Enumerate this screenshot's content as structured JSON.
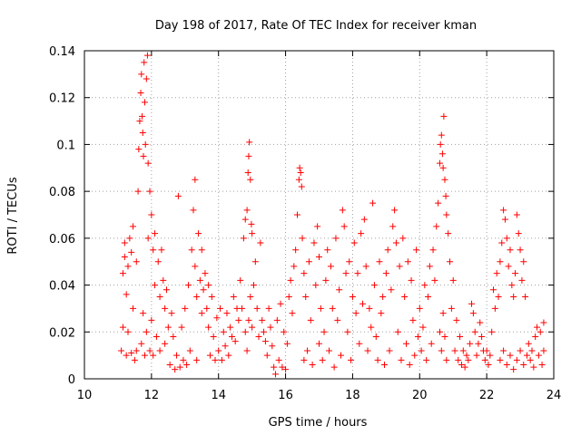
{
  "chart_data": {
    "type": "scatter",
    "title": "Day 198 of 2017, Rate Of TEC Index for receiver kman",
    "xlabel": "GPS time / hours",
    "ylabel": "ROTI / TECUs",
    "xlim": [
      10,
      24
    ],
    "ylim": [
      0,
      0.14
    ],
    "x_ticks": [
      "10",
      "12",
      "14",
      "16",
      "18",
      "20",
      "22",
      "24"
    ],
    "y_ticks": [
      "0",
      "0.02",
      "0.04",
      "0.06",
      "0.08",
      "0.1",
      "0.12",
      "0.14"
    ],
    "grid": true,
    "marker": "plus",
    "color": "#ff0000",
    "series": [
      {
        "points": [
          [
            11.1,
            0.012
          ],
          [
            11.15,
            0.022
          ],
          [
            11.15,
            0.045
          ],
          [
            11.2,
            0.052
          ],
          [
            11.2,
            0.058
          ],
          [
            11.25,
            0.01
          ],
          [
            11.25,
            0.036
          ],
          [
            11.3,
            0.02
          ],
          [
            11.3,
            0.048
          ],
          [
            11.35,
            0.06
          ],
          [
            11.4,
            0.011
          ],
          [
            11.4,
            0.054
          ],
          [
            11.45,
            0.065
          ],
          [
            11.45,
            0.03
          ],
          [
            11.5,
            0.008
          ],
          [
            11.55,
            0.05
          ],
          [
            11.55,
            0.012
          ],
          [
            11.6,
            0.08
          ],
          [
            11.62,
            0.098
          ],
          [
            11.65,
            0.11
          ],
          [
            11.68,
            0.122
          ],
          [
            11.7,
            0.13
          ],
          [
            11.72,
            0.112
          ],
          [
            11.74,
            0.105
          ],
          [
            11.76,
            0.095
          ],
          [
            11.78,
            0.135
          ],
          [
            11.8,
            0.118
          ],
          [
            11.82,
            0.1
          ],
          [
            11.85,
            0.128
          ],
          [
            11.88,
            0.138
          ],
          [
            11.7,
            0.015
          ],
          [
            11.75,
            0.028
          ],
          [
            11.8,
            0.01
          ],
          [
            11.85,
            0.02
          ],
          [
            11.9,
            0.092
          ],
          [
            11.9,
            0.06
          ],
          [
            11.95,
            0.08
          ],
          [
            11.95,
            0.012
          ],
          [
            12.0,
            0.07
          ],
          [
            12.0,
            0.025
          ],
          [
            12.05,
            0.055
          ],
          [
            12.05,
            0.01
          ],
          [
            12.1,
            0.062
          ],
          [
            12.1,
            0.04
          ],
          [
            12.15,
            0.018
          ],
          [
            12.2,
            0.05
          ],
          [
            12.25,
            0.035
          ],
          [
            12.25,
            0.012
          ],
          [
            12.3,
            0.055
          ],
          [
            12.35,
            0.042
          ],
          [
            12.4,
            0.03
          ],
          [
            12.4,
            0.015
          ],
          [
            12.45,
            0.038
          ],
          [
            12.5,
            0.022
          ],
          [
            12.55,
            0.006
          ],
          [
            12.6,
            0.028
          ],
          [
            12.65,
            0.018
          ],
          [
            12.7,
            0.004
          ],
          [
            12.75,
            0.01
          ],
          [
            12.8,
            0.078
          ],
          [
            12.85,
            0.005
          ],
          [
            12.9,
            0.022
          ],
          [
            12.95,
            0.008
          ],
          [
            13.0,
            0.03
          ],
          [
            13.05,
            0.006
          ],
          [
            13.1,
            0.04
          ],
          [
            13.15,
            0.012
          ],
          [
            13.2,
            0.055
          ],
          [
            13.25,
            0.072
          ],
          [
            13.3,
            0.085
          ],
          [
            13.3,
            0.048
          ],
          [
            13.35,
            0.035
          ],
          [
            13.35,
            0.008
          ],
          [
            13.4,
            0.062
          ],
          [
            13.45,
            0.042
          ],
          [
            13.5,
            0.028
          ],
          [
            13.5,
            0.055
          ],
          [
            13.55,
            0.038
          ],
          [
            13.6,
            0.045
          ],
          [
            13.65,
            0.03
          ],
          [
            13.7,
            0.022
          ],
          [
            13.7,
            0.04
          ],
          [
            13.75,
            0.01
          ],
          [
            13.8,
            0.035
          ],
          [
            13.85,
            0.018
          ],
          [
            13.9,
            0.008
          ],
          [
            13.95,
            0.026
          ],
          [
            14.0,
            0.012
          ],
          [
            14.05,
            0.03
          ],
          [
            14.1,
            0.008
          ],
          [
            14.15,
            0.02
          ],
          [
            14.2,
            0.014
          ],
          [
            14.25,
            0.028
          ],
          [
            14.3,
            0.01
          ],
          [
            14.35,
            0.022
          ],
          [
            14.4,
            0.018
          ],
          [
            14.45,
            0.035
          ],
          [
            14.5,
            0.016
          ],
          [
            14.55,
            0.03
          ],
          [
            14.6,
            0.025
          ],
          [
            14.65,
            0.042
          ],
          [
            14.7,
            0.03
          ],
          [
            14.75,
            0.06
          ],
          [
            14.8,
            0.068
          ],
          [
            14.85,
            0.072
          ],
          [
            14.88,
            0.088
          ],
          [
            14.9,
            0.095
          ],
          [
            14.92,
            0.101
          ],
          [
            14.95,
            0.085
          ],
          [
            14.98,
            0.066
          ],
          [
            14.8,
            0.02
          ],
          [
            14.85,
            0.012
          ],
          [
            14.9,
            0.025
          ],
          [
            14.95,
            0.035
          ],
          [
            15.0,
            0.062
          ],
          [
            15.0,
            0.022
          ],
          [
            15.05,
            0.04
          ],
          [
            15.1,
            0.05
          ],
          [
            15.15,
            0.03
          ],
          [
            15.2,
            0.018
          ],
          [
            15.25,
            0.058
          ],
          [
            15.3,
            0.025
          ],
          [
            15.35,
            0.02
          ],
          [
            15.4,
            0.016
          ],
          [
            15.45,
            0.01
          ],
          [
            15.5,
            0.03
          ],
          [
            15.55,
            0.022
          ],
          [
            15.6,
            0.014
          ],
          [
            15.65,
            0.005
          ],
          [
            15.7,
            0.002
          ],
          [
            15.75,
            0.025
          ],
          [
            15.8,
            0.008
          ],
          [
            15.85,
            0.032
          ],
          [
            15.9,
            0.005
          ],
          [
            15.95,
            0.02
          ],
          [
            16.0,
            0.004
          ],
          [
            16.05,
            0.015
          ],
          [
            16.1,
            0.035
          ],
          [
            16.15,
            0.042
          ],
          [
            16.2,
            0.028
          ],
          [
            16.25,
            0.048
          ],
          [
            16.3,
            0.055
          ],
          [
            16.35,
            0.07
          ],
          [
            16.4,
            0.085
          ],
          [
            16.42,
            0.09
          ],
          [
            16.45,
            0.088
          ],
          [
            16.48,
            0.082
          ],
          [
            16.5,
            0.06
          ],
          [
            16.55,
            0.008
          ],
          [
            16.55,
            0.045
          ],
          [
            16.6,
            0.035
          ],
          [
            16.65,
            0.012
          ],
          [
            16.7,
            0.05
          ],
          [
            16.75,
            0.025
          ],
          [
            16.8,
            0.006
          ],
          [
            16.85,
            0.058
          ],
          [
            16.9,
            0.04
          ],
          [
            16.95,
            0.065
          ],
          [
            17.0,
            0.052
          ],
          [
            17.0,
            0.015
          ],
          [
            17.05,
            0.03
          ],
          [
            17.1,
            0.008
          ],
          [
            17.15,
            0.02
          ],
          [
            17.2,
            0.042
          ],
          [
            17.25,
            0.055
          ],
          [
            17.3,
            0.012
          ],
          [
            17.35,
            0.048
          ],
          [
            17.4,
            0.03
          ],
          [
            17.45,
            0.005
          ],
          [
            17.5,
            0.06
          ],
          [
            17.55,
            0.025
          ],
          [
            17.6,
            0.038
          ],
          [
            17.65,
            0.01
          ],
          [
            17.7,
            0.072
          ],
          [
            17.75,
            0.065
          ],
          [
            17.8,
            0.045
          ],
          [
            17.85,
            0.02
          ],
          [
            17.9,
            0.05
          ],
          [
            17.95,
            0.008
          ],
          [
            18.0,
            0.035
          ],
          [
            18.05,
            0.058
          ],
          [
            18.1,
            0.028
          ],
          [
            18.15,
            0.045
          ],
          [
            18.2,
            0.015
          ],
          [
            18.25,
            0.062
          ],
          [
            18.3,
            0.032
          ],
          [
            18.35,
            0.068
          ],
          [
            18.4,
            0.048
          ],
          [
            18.45,
            0.012
          ],
          [
            18.5,
            0.03
          ],
          [
            18.55,
            0.022
          ],
          [
            18.6,
            0.075
          ],
          [
            18.65,
            0.04
          ],
          [
            18.7,
            0.018
          ],
          [
            18.75,
            0.008
          ],
          [
            18.8,
            0.05
          ],
          [
            18.85,
            0.028
          ],
          [
            18.9,
            0.035
          ],
          [
            18.95,
            0.006
          ],
          [
            19.0,
            0.045
          ],
          [
            19.05,
            0.055
          ],
          [
            19.1,
            0.012
          ],
          [
            19.15,
            0.038
          ],
          [
            19.2,
            0.065
          ],
          [
            19.25,
            0.072
          ],
          [
            19.3,
            0.058
          ],
          [
            19.35,
            0.02
          ],
          [
            19.4,
            0.048
          ],
          [
            19.45,
            0.008
          ],
          [
            19.5,
            0.06
          ],
          [
            19.55,
            0.035
          ],
          [
            19.6,
            0.015
          ],
          [
            19.65,
            0.05
          ],
          [
            19.7,
            0.006
          ],
          [
            19.75,
            0.042
          ],
          [
            19.8,
            0.025
          ],
          [
            19.85,
            0.01
          ],
          [
            19.9,
            0.055
          ],
          [
            19.95,
            0.018
          ],
          [
            20.0,
            0.03
          ],
          [
            20.05,
            0.012
          ],
          [
            20.1,
            0.022
          ],
          [
            20.15,
            0.04
          ],
          [
            20.2,
            0.008
          ],
          [
            20.25,
            0.035
          ],
          [
            20.3,
            0.048
          ],
          [
            20.35,
            0.015
          ],
          [
            20.4,
            0.055
          ],
          [
            20.45,
            0.042
          ],
          [
            20.5,
            0.065
          ],
          [
            20.55,
            0.075
          ],
          [
            20.6,
            0.092
          ],
          [
            20.62,
            0.1
          ],
          [
            20.65,
            0.104
          ],
          [
            20.68,
            0.096
          ],
          [
            20.7,
            0.09
          ],
          [
            20.72,
            0.112
          ],
          [
            20.75,
            0.085
          ],
          [
            20.78,
            0.078
          ],
          [
            20.8,
            0.07
          ],
          [
            20.6,
            0.02
          ],
          [
            20.65,
            0.012
          ],
          [
            20.7,
            0.028
          ],
          [
            20.75,
            0.018
          ],
          [
            20.8,
            0.008
          ],
          [
            20.85,
            0.062
          ],
          [
            20.9,
            0.05
          ],
          [
            20.95,
            0.03
          ],
          [
            21.0,
            0.042
          ],
          [
            21.05,
            0.012
          ],
          [
            21.1,
            0.025
          ],
          [
            21.15,
            0.008
          ],
          [
            21.2,
            0.018
          ],
          [
            21.25,
            0.006
          ],
          [
            21.3,
            0.012
          ],
          [
            21.35,
            0.005
          ],
          [
            21.4,
            0.01
          ],
          [
            21.45,
            0.008
          ],
          [
            21.5,
            0.015
          ],
          [
            21.55,
            0.032
          ],
          [
            21.6,
            0.028
          ],
          [
            21.65,
            0.02
          ],
          [
            21.7,
            0.01
          ],
          [
            21.75,
            0.015
          ],
          [
            21.8,
            0.024
          ],
          [
            21.85,
            0.018
          ],
          [
            21.9,
            0.012
          ],
          [
            21.95,
            0.008
          ],
          [
            22.0,
            0.012
          ],
          [
            22.05,
            0.006
          ],
          [
            22.1,
            0.01
          ],
          [
            22.15,
            0.02
          ],
          [
            22.2,
            0.038
          ],
          [
            22.25,
            0.03
          ],
          [
            22.3,
            0.045
          ],
          [
            22.35,
            0.035
          ],
          [
            22.4,
            0.05
          ],
          [
            22.45,
            0.058
          ],
          [
            22.5,
            0.072
          ],
          [
            22.55,
            0.068
          ],
          [
            22.6,
            0.06
          ],
          [
            22.65,
            0.048
          ],
          [
            22.7,
            0.055
          ],
          [
            22.75,
            0.04
          ],
          [
            22.8,
            0.035
          ],
          [
            22.85,
            0.045
          ],
          [
            22.9,
            0.07
          ],
          [
            22.95,
            0.062
          ],
          [
            23.0,
            0.055
          ],
          [
            23.05,
            0.042
          ],
          [
            23.1,
            0.05
          ],
          [
            23.15,
            0.035
          ],
          [
            22.4,
            0.008
          ],
          [
            22.5,
            0.012
          ],
          [
            22.6,
            0.006
          ],
          [
            22.7,
            0.01
          ],
          [
            22.8,
            0.004
          ],
          [
            22.9,
            0.008
          ],
          [
            23.0,
            0.012
          ],
          [
            23.1,
            0.006
          ],
          [
            23.2,
            0.01
          ],
          [
            23.25,
            0.015
          ],
          [
            23.3,
            0.008
          ],
          [
            23.35,
            0.012
          ],
          [
            23.4,
            0.005
          ],
          [
            23.45,
            0.018
          ],
          [
            23.5,
            0.022
          ],
          [
            23.55,
            0.01
          ],
          [
            23.6,
            0.02
          ],
          [
            23.65,
            0.006
          ],
          [
            23.7,
            0.012
          ],
          [
            23.7,
            0.024
          ]
        ]
      }
    ]
  }
}
